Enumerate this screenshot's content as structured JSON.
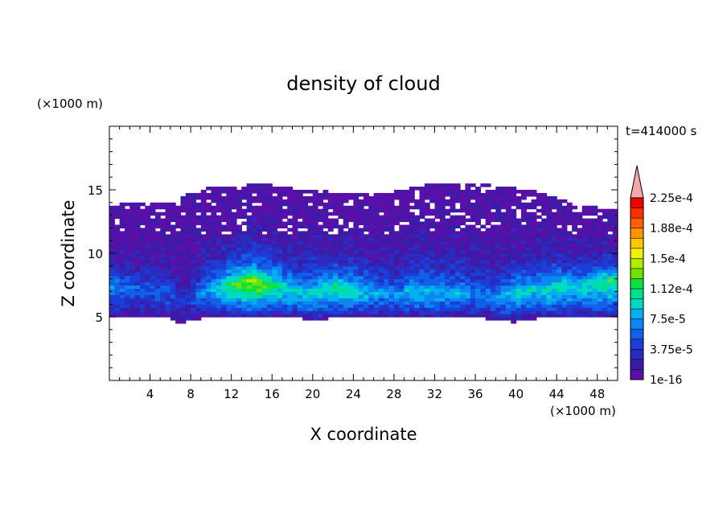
{
  "chart_data": {
    "type": "heatmap",
    "title": "density of cloud",
    "xlabel": "X coordinate",
    "ylabel": "Z coordinate",
    "x_unit": "(×1000 m)",
    "y_unit": "(×1000 m)",
    "time_label": "t=414000 s",
    "xlim": [
      0,
      50
    ],
    "ylim": [
      0,
      20
    ],
    "x_ticks": [
      4,
      8,
      12,
      16,
      20,
      24,
      28,
      32,
      36,
      40,
      44,
      48
    ],
    "y_ticks": [
      5,
      10,
      15
    ],
    "x_tick_labels": [
      "4",
      "8",
      "12",
      "16",
      "20",
      "24",
      "28",
      "32",
      "36",
      "40",
      "44",
      "48"
    ],
    "y_tick_labels": [
      "5",
      "10",
      "15"
    ],
    "colorbar": {
      "labels": [
        "1e-16",
        "3.75e-5",
        "7.5e-5",
        "1.12e-4",
        "1.5e-4",
        "1.88e-4",
        "2.25e-4"
      ],
      "colors": [
        "#5a10a8",
        "#3a1ca8",
        "#2a2cc0",
        "#1c3ed8",
        "#1060e8",
        "#0d86f0",
        "#00b0f0",
        "#00d8c8",
        "#00e090",
        "#10e040",
        "#70e000",
        "#b0ec00",
        "#f0f000",
        "#ffc800",
        "#ff9400",
        "#ff6000",
        "#ff3000",
        "#f00000"
      ],
      "overflow_color": "#f4a8a8"
    },
    "profile": {
      "x": [
        0,
        2,
        4,
        6,
        7,
        8,
        10,
        12,
        14,
        16,
        18,
        20,
        22,
        24,
        26,
        28,
        30,
        32,
        34,
        36,
        38,
        40,
        42,
        44,
        46,
        48,
        50
      ],
      "cloud_base_z": [
        4.9,
        5.0,
        5.0,
        4.9,
        4.3,
        4.8,
        5.0,
        5.0,
        5.0,
        5.0,
        5.0,
        4.8,
        4.9,
        5.0,
        5.0,
        5.0,
        5.0,
        4.9,
        5.0,
        5.0,
        4.8,
        4.6,
        4.9,
        5.0,
        5.0,
        4.9,
        5.1
      ],
      "core_peak_z": [
        7.6,
        7.4,
        7.2,
        7.0,
        6.2,
        6.6,
        7.2,
        7.6,
        7.8,
        7.6,
        7.2,
        7.0,
        7.4,
        7.2,
        7.0,
        6.8,
        7.0,
        7.0,
        6.8,
        6.8,
        6.6,
        7.0,
        7.2,
        7.4,
        7.6,
        7.8,
        8.0
      ],
      "core_peak_level": [
        5,
        4,
        4,
        4,
        2,
        3,
        6,
        9,
        11,
        9,
        7,
        7,
        8,
        8,
        6,
        5,
        7,
        6,
        6,
        5,
        5,
        7,
        7,
        8,
        7,
        8,
        9
      ],
      "cloud_top_z": [
        13.9,
        13.9,
        14.0,
        14.0,
        14.3,
        14.8,
        15.2,
        15.3,
        15.4,
        15.4,
        15.1,
        15.0,
        14.8,
        14.7,
        14.6,
        14.9,
        15.3,
        15.6,
        15.6,
        15.5,
        15.3,
        15.1,
        14.9,
        14.3,
        13.9,
        13.6,
        13.6
      ]
    }
  }
}
